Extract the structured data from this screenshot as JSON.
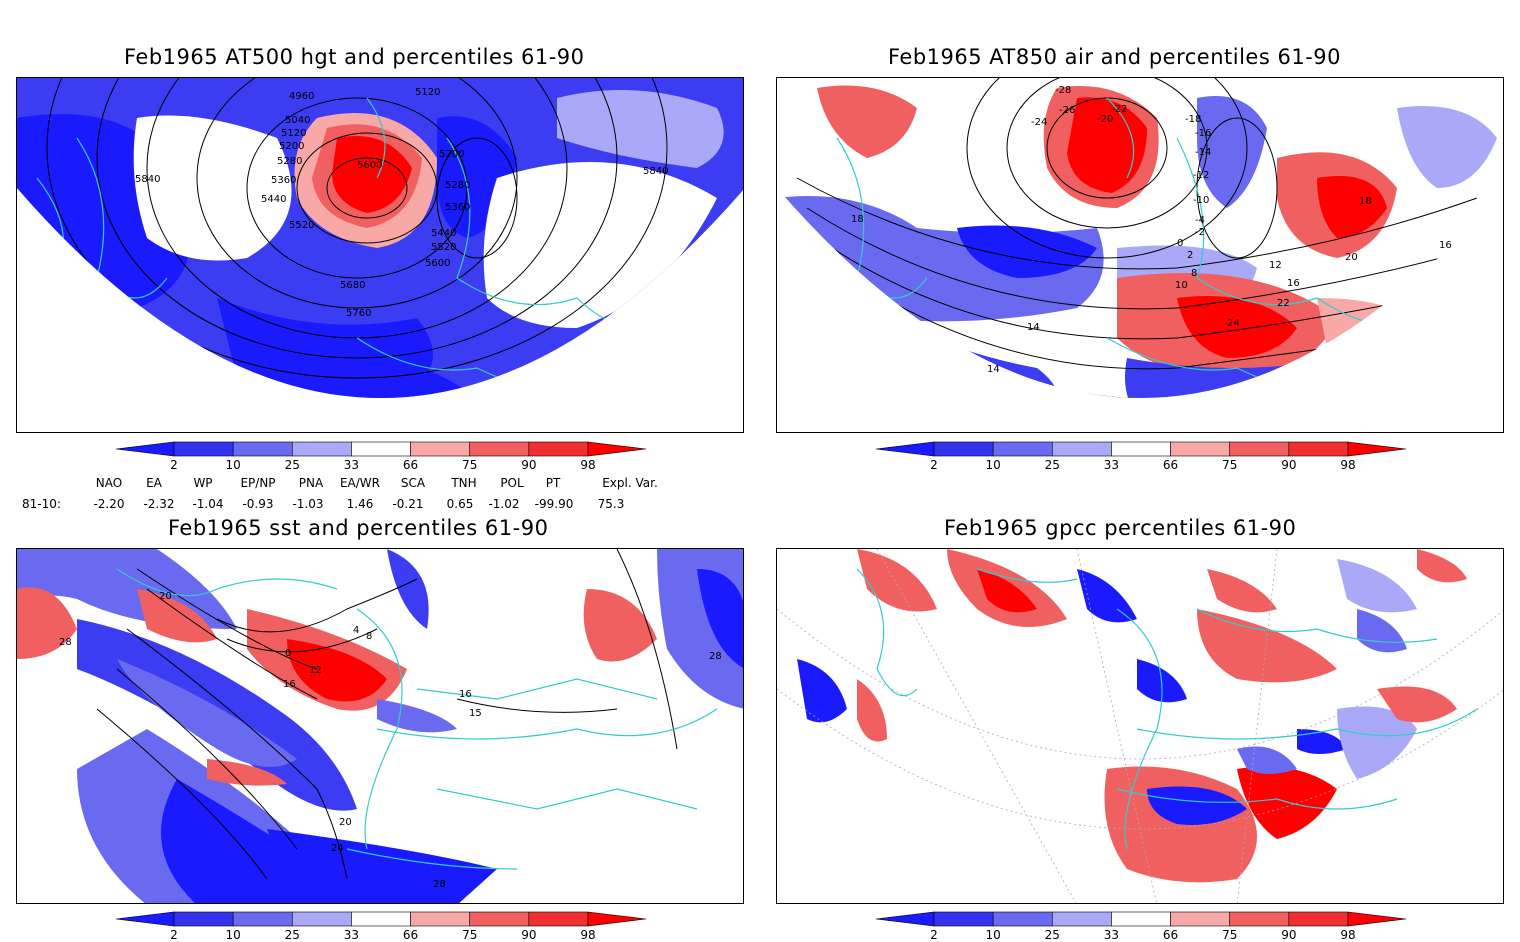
{
  "panels": [
    {
      "title": "Feb1965 AT500 hgt and percentiles 61-90",
      "contour_labels": [
        "4960",
        "5040",
        "5120",
        "5200",
        "5280",
        "5360",
        "5440",
        "5520",
        "5600",
        "5680",
        "5760",
        "5840",
        "5120",
        "5200",
        "5280",
        "5360",
        "5440",
        "5520",
        "5600",
        "5840"
      ]
    },
    {
      "title": "Feb1965 AT850 air and percentiles 61-90",
      "contour_labels": [
        "-28",
        "-26",
        "-24",
        "-22",
        "-20",
        "-18",
        "-16",
        "-14",
        "-12",
        "-10",
        "-4",
        "-2",
        "0",
        "2",
        "8",
        "10",
        "12",
        "14",
        "16",
        "18",
        "20",
        "22",
        "24",
        "14",
        "18",
        "16"
      ]
    },
    {
      "title": "Feb1965 sst and percentiles 61-90",
      "contour_labels": [
        "20",
        "28",
        "0",
        "4",
        "8",
        "12",
        "16",
        "16",
        "15",
        "20",
        "24",
        "28",
        "28"
      ]
    },
    {
      "title": "Feb1965 gpcc percentiles 61-90",
      "contour_labels": []
    }
  ],
  "colorbar": {
    "labels": [
      "2",
      "10",
      "25",
      "33",
      "66",
      "75",
      "90",
      "98"
    ],
    "colors": [
      "#1a1aff",
      "#3333ee",
      "#6a6af0",
      "#a9a9f8",
      "#ffffff",
      "#f9a8a8",
      "#f06060",
      "#f03030",
      "#ff0000"
    ]
  },
  "indices": {
    "headers": [
      "NAO",
      "EA",
      "WP",
      "EP/NP",
      "PNA",
      "EA/WR",
      "SCA",
      "TNH",
      "POL",
      "PT",
      "Expl. Var."
    ],
    "row_label": "81-10:",
    "values": [
      "-2.20",
      "-2.32",
      "-1.04",
      "-0.93",
      "-1.03",
      "1.46",
      "-0.21",
      "0.65",
      "-1.02",
      "-99.90",
      "75.3"
    ]
  },
  "colors": {
    "coastline": "#33cccc",
    "strong_blue": "#1a1aff",
    "mid_blue": "#4d4dee",
    "light_blue": "#a9a9f8",
    "light_red": "#f9a8a8",
    "mid_red": "#f06060",
    "strong_red": "#ff0000"
  }
}
